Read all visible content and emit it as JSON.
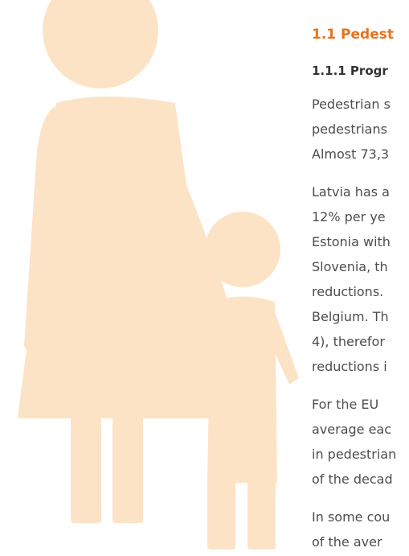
{
  "section": {
    "heading": "1.1 Pedest",
    "subheading": "1.1.1 Progr",
    "paragraphs": [
      [
        "Pedestrian s",
        "pedestrians",
        "Almost 73,3"
      ],
      [
        "Latvia has a",
        "12% per ye",
        "Estonia with",
        "Slovenia, th",
        "reductions.",
        "Belgium. Th",
        "4), therefor",
        "reductions i"
      ],
      [
        "For the EU",
        "average eac",
        "in pedestrian",
        "of the decad"
      ],
      [
        "In some cou",
        "of the aver"
      ]
    ]
  }
}
